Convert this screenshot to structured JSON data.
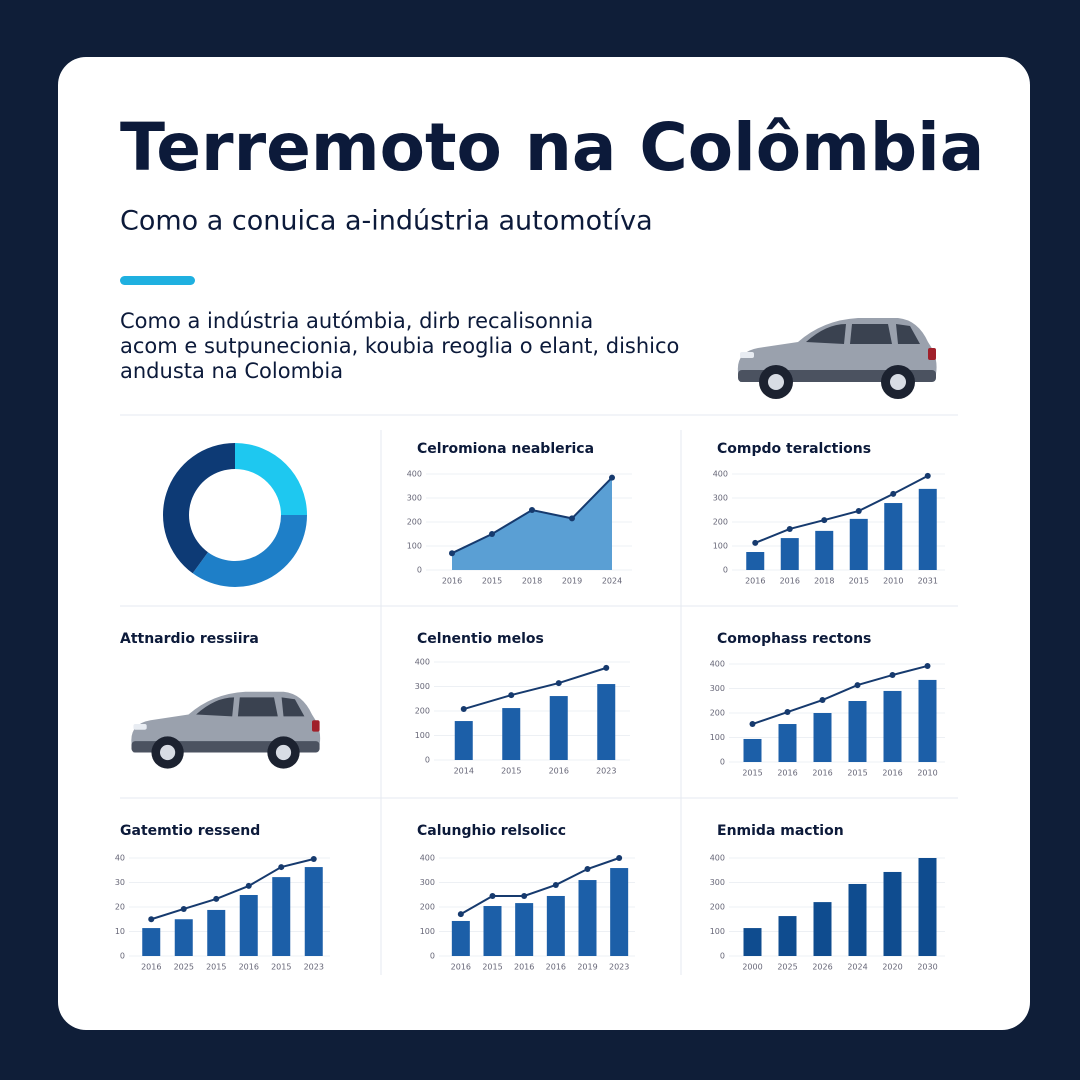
{
  "header": {
    "title": "Terremoto na Colômbia",
    "subtitle": "Como a conuica a-indústria automotíva",
    "paragraph": [
      "Como a indústria autómbia, dirb recalisonnia",
      "acom e sutpunecionia, koubia reoglia o elant, dishico",
      "andusta na Colombia"
    ]
  },
  "car_panel": {
    "title": "Attnardio ressiira"
  },
  "chart_data": [
    {
      "type": "pie",
      "donut": true,
      "values": [
        25,
        35,
        40
      ],
      "colors": [
        "#1ec8f0",
        "#1e7fc8",
        "#0d3a75"
      ]
    },
    {
      "type": "area",
      "title": "Celromiona neablerica",
      "categories": [
        "2016",
        "2015",
        "2018",
        "2019",
        "2024"
      ],
      "ylim": [
        0,
        400
      ],
      "yticks": [
        0,
        100,
        200,
        300,
        400
      ],
      "grid": true,
      "series": [
        {
          "type": "area",
          "color": "#5a9fd4",
          "line_color": "#163a6e",
          "values": [
            70,
            150,
            250,
            215,
            385
          ]
        }
      ]
    },
    {
      "type": "bar",
      "title": "Compdo teralctions",
      "categories": [
        "2016",
        "2016",
        "2018",
        "2015",
        "2010",
        "2031"
      ],
      "ylim": [
        0,
        400
      ],
      "yticks": [
        0,
        100,
        200,
        300,
        400
      ],
      "grid": true,
      "series": [
        {
          "type": "bar",
          "color": "#1c5fa8",
          "values": [
            75,
            133,
            163,
            213,
            279,
            338
          ]
        },
        {
          "type": "line",
          "color": "#163a6e",
          "values": [
            113,
            171,
            208,
            246,
            317,
            392
          ]
        }
      ]
    },
    {
      "type": "bar",
      "title": "Celnentio melos",
      "categories": [
        "2014",
        "2015",
        "2016",
        "2023"
      ],
      "ylim": [
        0,
        400
      ],
      "yticks": [
        0,
        100,
        200,
        300,
        400
      ],
      "grid": true,
      "series": [
        {
          "type": "bar",
          "color": "#1c5fa8",
          "values": [
            159,
            212,
            261,
            310
          ]
        },
        {
          "type": "line",
          "color": "#163a6e",
          "values": [
            208,
            265,
            314,
            376
          ]
        }
      ]
    },
    {
      "type": "bar",
      "title": "Comophass rectons",
      "categories": [
        "2015",
        "2016",
        "2016",
        "2015",
        "2016",
        "2010"
      ],
      "ylim": [
        0,
        400
      ],
      "yticks": [
        0,
        100,
        200,
        300,
        400
      ],
      "grid": true,
      "series": [
        {
          "type": "bar",
          "color": "#1c5fa8",
          "values": [
            94,
            155,
            200,
            249,
            290,
            335
          ]
        },
        {
          "type": "line",
          "color": "#163a6e",
          "values": [
            155,
            204,
            253,
            314,
            355,
            392
          ]
        }
      ]
    },
    {
      "type": "bar",
      "title": "Gatemtio ressend",
      "categories": [
        "2016",
        "2025",
        "2015",
        "2016",
        "2015",
        "2023"
      ],
      "ylim": [
        0,
        40
      ],
      "yticks": [
        0,
        10,
        20,
        30,
        40
      ],
      "grid": true,
      "series": [
        {
          "type": "bar",
          "color": "#1c5fa8",
          "values": [
            11.4,
            15,
            18.8,
            24.9,
            32.2,
            36.3
          ]
        },
        {
          "type": "line",
          "color": "#163a6e",
          "values": [
            15,
            19.2,
            23.3,
            28.6,
            36.3,
            39.6
          ]
        }
      ]
    },
    {
      "type": "bar",
      "title": "Calunghio relsolicc",
      "categories": [
        "2016",
        "2015",
        "2016",
        "2016",
        "2019",
        "2023"
      ],
      "ylim": [
        0,
        400
      ],
      "yticks": [
        0,
        100,
        200,
        300,
        400
      ],
      "grid": true,
      "series": [
        {
          "type": "bar",
          "color": "#1c5fa8",
          "values": [
            143,
            204,
            216,
            245,
            310,
            359
          ]
        },
        {
          "type": "line",
          "color": "#163a6e",
          "values": [
            171,
            245,
            245,
            290,
            355,
            400
          ]
        }
      ]
    },
    {
      "type": "bar",
      "title": "Enmida maction",
      "categories": [
        "2000",
        "2025",
        "2026",
        "2024",
        "2020",
        "2030"
      ],
      "ylim": [
        0,
        400
      ],
      "yticks": [
        0,
        100,
        200,
        300,
        400
      ],
      "grid": true,
      "series": [
        {
          "type": "bar",
          "color": "#0f4c8f",
          "values": [
            114,
            163,
            220,
            294,
            343,
            400
          ]
        }
      ]
    }
  ]
}
